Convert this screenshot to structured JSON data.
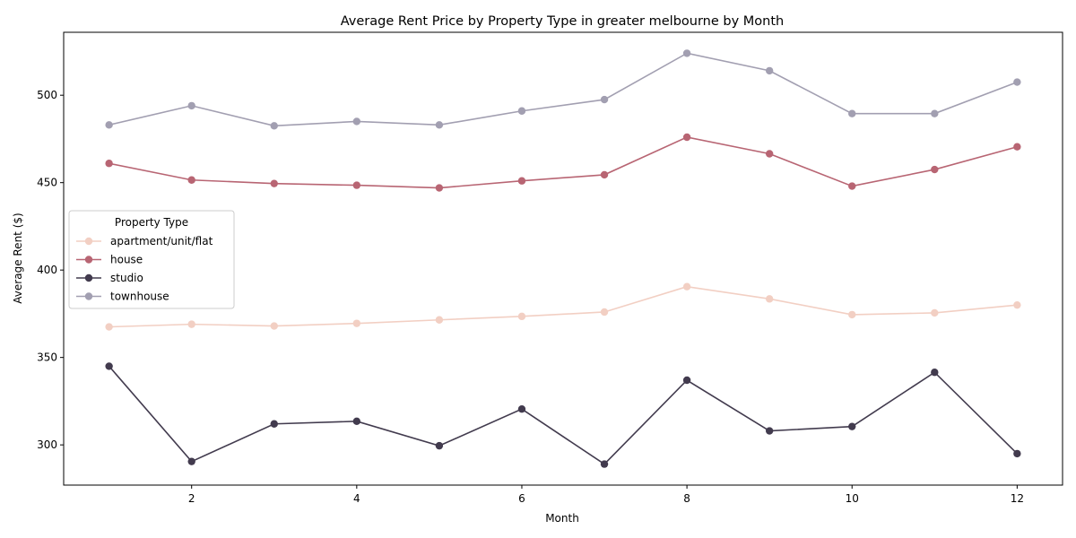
{
  "chart_data": {
    "type": "line",
    "title": "Average Rent Price by Property Type in greater melbourne by Month",
    "xlabel": "Month",
    "ylabel": "Average Rent ($)",
    "xlim": [
      0.45,
      12.55
    ],
    "ylim": [
      277,
      536
    ],
    "xticks": [
      2,
      4,
      6,
      8,
      10,
      12
    ],
    "yticks": [
      300,
      350,
      400,
      450,
      500
    ],
    "grid": false,
    "legend": {
      "title": "Property Type",
      "position": "center-left"
    },
    "x": [
      1,
      2,
      3,
      4,
      5,
      6,
      7,
      8,
      9,
      10,
      11,
      12
    ],
    "series": [
      {
        "name": "apartment/unit/flat",
        "color": "#f2cfc3",
        "values": [
          367.5,
          369,
          368,
          369.5,
          371.5,
          373.5,
          376,
          390.5,
          383.5,
          374.5,
          375.5,
          380
        ]
      },
      {
        "name": "house",
        "color": "#b86573",
        "values": [
          461,
          451.5,
          449.5,
          448.5,
          447,
          451,
          454.5,
          476,
          466.5,
          448,
          457.5,
          470.5
        ]
      },
      {
        "name": "studio",
        "color": "#423b4e",
        "values": [
          345,
          290.5,
          312,
          313.5,
          299.5,
          320.5,
          289,
          337,
          308,
          310.5,
          341.5,
          295
        ]
      },
      {
        "name": "townhouse",
        "color": "#a29fb1",
        "values": [
          483,
          494,
          482.5,
          485,
          483,
          491,
          497.5,
          524,
          514,
          489.5,
          489.5,
          507.5
        ]
      }
    ]
  }
}
